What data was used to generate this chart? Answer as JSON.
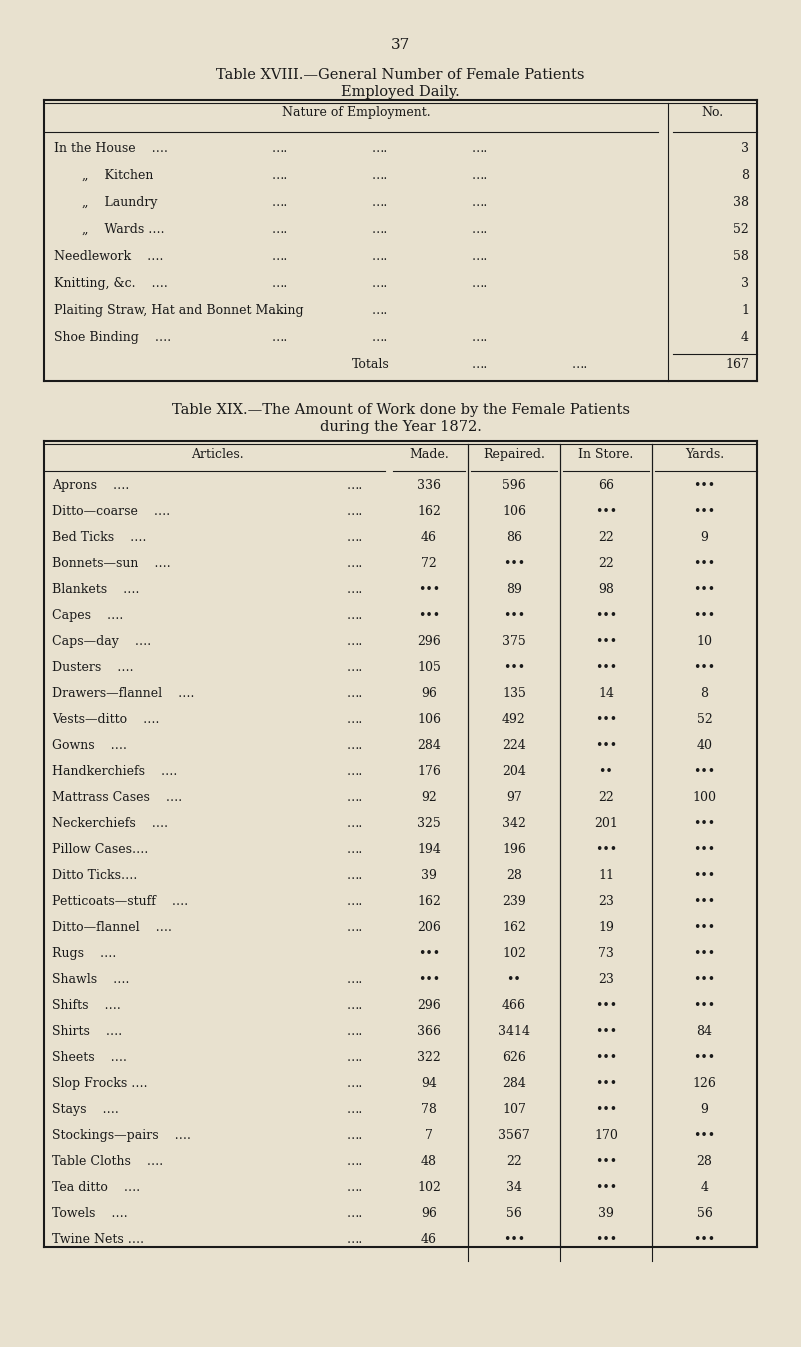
{
  "bg_color": "#e8e1cf",
  "page_number": "37",
  "table18_title1": "Table XVIII.—General Number of Female Patients",
  "table18_title2": "Employed Daily.",
  "table18_col1_header": "Nature of Employment.",
  "table18_col2_header": "No.",
  "table18_rows": [
    [
      "In the House    ….",
      "….",
      "….",
      "….",
      "3"
    ],
    [
      "„    Kitchen",
      "….",
      "….",
      "….",
      "8"
    ],
    [
      "„    Laundry",
      "….",
      "….",
      "….",
      "38"
    ],
    [
      "„    Wards ….",
      "….",
      "….",
      "….",
      "52"
    ],
    [
      "Needlework    ….",
      "….",
      "….",
      "….",
      "58"
    ],
    [
      "Knitting, &c.    ….",
      "….",
      "….",
      "….",
      "3"
    ],
    [
      "Plaiting Straw, Hat and Bonnet Making",
      "….",
      "….",
      "",
      "1"
    ],
    [
      "Shoe Binding    ….",
      "….",
      "….",
      "….",
      "4"
    ]
  ],
  "table18_totals_label": "Totals",
  "table18_totals_dots": "….",
  "table18_totals_value": "167",
  "table19_title1": "Table XIX.—The Amount of Work done by the Female Patients",
  "table19_title2": "during the Year 1872.",
  "table19_headers": [
    "Articles.",
    "Made.",
    "Repaired.",
    "In Store.",
    "Yards."
  ],
  "table19_rows": [
    [
      "Aprons    ….",
      "….",
      "336",
      "596",
      "66",
      "•••"
    ],
    [
      "Ditto—coarse    ….",
      "….",
      "162",
      "106",
      "•••",
      "•••"
    ],
    [
      "Bed Ticks    ….",
      "….",
      "46",
      "86",
      "22",
      "9"
    ],
    [
      "Bonnets—sun    ….",
      "….",
      "72",
      "•••",
      "22",
      "•••"
    ],
    [
      "Blankets    ….",
      "….",
      "•••",
      "89",
      "98",
      "•••"
    ],
    [
      "Capes    ….",
      "….",
      "•••",
      "•••",
      "•••",
      "•••"
    ],
    [
      "Caps—day    ….",
      "….",
      "296",
      "375",
      "•••",
      "10"
    ],
    [
      "Dusters    ….",
      "….",
      "105",
      "•••",
      "•••",
      "•••"
    ],
    [
      "Drawers—flannel    ….",
      "….",
      "96",
      "135",
      "14",
      "8"
    ],
    [
      "Vests—ditto    ….",
      "….",
      "106",
      "492",
      "•••",
      "52"
    ],
    [
      "Gowns    ….",
      "….",
      "284",
      "224",
      "•••",
      "40"
    ],
    [
      "Handkerchiefs    ….",
      "….",
      "176",
      "204",
      "••",
      "•••"
    ],
    [
      "Mattrass Cases    ….",
      "….",
      "92",
      "97",
      "22",
      "100"
    ],
    [
      "Neckerchiefs    ….",
      "….",
      "325",
      "342",
      "201",
      "•••"
    ],
    [
      "Pillow Cases….",
      "….",
      "194",
      "196",
      "•••",
      "•••"
    ],
    [
      "Ditto Ticks….",
      "….",
      "39",
      "28",
      "11",
      "•••"
    ],
    [
      "Petticoats—stuff    ….",
      "….",
      "162",
      "239",
      "23",
      "•••"
    ],
    [
      "Ditto—flannel    ….",
      "….",
      "206",
      "162",
      "19",
      "•••"
    ],
    [
      "Rugs    ….",
      "•••",
      "•••",
      "102",
      "73",
      "•••"
    ],
    [
      "Shawls    ….",
      "….",
      "•••",
      "••",
      "23",
      "•••"
    ],
    [
      "Shifts    ….",
      "….",
      "296",
      "466",
      "•••",
      "•••"
    ],
    [
      "Shirts    ….",
      "….",
      "366",
      "3414",
      "•••",
      "84"
    ],
    [
      "Sheets    ….",
      "….",
      "322",
      "626",
      "•••",
      "•••"
    ],
    [
      "Slop Frocks ….",
      "….",
      "94",
      "284",
      "•••",
      "126"
    ],
    [
      "Stays    ….",
      "….",
      "78",
      "107",
      "•••",
      "9"
    ],
    [
      "Stockings—pairs    ….",
      "….",
      "7",
      "3567",
      "170",
      "•••"
    ],
    [
      "Table Cloths    ….",
      "….",
      "48",
      "22",
      "•••",
      "28"
    ],
    [
      "Tea ditto    ….",
      "….",
      "102",
      "34",
      "•••",
      "4"
    ],
    [
      "Towels    ….",
      "….",
      "96",
      "56",
      "39",
      "56"
    ],
    [
      "Twine Nets ….",
      "….",
      "46",
      "•••",
      "•••",
      "•••"
    ]
  ]
}
